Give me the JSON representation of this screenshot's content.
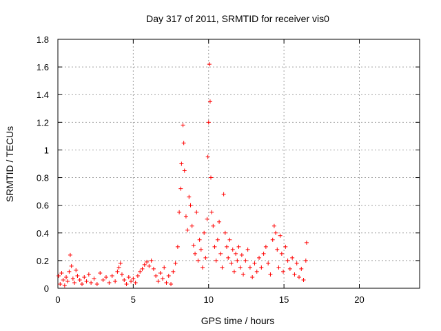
{
  "chart_data": {
    "type": "scatter",
    "title": "Day 317 of 2011, SRMTID for receiver vis0",
    "xlabel": "GPS time / hours",
    "ylabel": "SRMTID / TECUs",
    "xlim": [
      0,
      24
    ],
    "ylim": [
      0,
      1.8
    ],
    "xticks": [
      "0",
      "5",
      "10",
      "15",
      "20"
    ],
    "yticks": [
      "0",
      "0.2",
      "0.4",
      "0.6",
      "0.8",
      "1",
      "1.2",
      "1.4",
      "1.6",
      "1.8"
    ],
    "grid": true,
    "marker": "+",
    "series": [
      {
        "color": "#ff0000",
        "points": [
          [
            0.05,
            0.09
          ],
          [
            0.15,
            0.03
          ],
          [
            0.25,
            0.11
          ],
          [
            0.35,
            0.06
          ],
          [
            0.45,
            0.02
          ],
          [
            0.55,
            0.08
          ],
          [
            0.65,
            0.05
          ],
          [
            0.75,
            0.12
          ],
          [
            0.82,
            0.24
          ],
          [
            0.9,
            0.16
          ],
          [
            1.0,
            0.07
          ],
          [
            1.1,
            0.04
          ],
          [
            1.2,
            0.13
          ],
          [
            1.3,
            0.09
          ],
          [
            1.45,
            0.06
          ],
          [
            1.6,
            0.03
          ],
          [
            1.75,
            0.08
          ],
          [
            1.9,
            0.05
          ],
          [
            2.05,
            0.1
          ],
          [
            2.2,
            0.04
          ],
          [
            2.4,
            0.07
          ],
          [
            2.6,
            0.03
          ],
          [
            2.8,
            0.11
          ],
          [
            3.0,
            0.06
          ],
          [
            3.2,
            0.08
          ],
          [
            3.4,
            0.04
          ],
          [
            3.6,
            0.09
          ],
          [
            3.8,
            0.05
          ],
          [
            3.95,
            0.12
          ],
          [
            4.05,
            0.15
          ],
          [
            4.15,
            0.18
          ],
          [
            4.25,
            0.1
          ],
          [
            4.4,
            0.06
          ],
          [
            4.55,
            0.03
          ],
          [
            4.7,
            0.08
          ],
          [
            4.85,
            0.05
          ],
          [
            5.0,
            0.07
          ],
          [
            5.15,
            0.04
          ],
          [
            5.3,
            0.09
          ],
          [
            5.45,
            0.12
          ],
          [
            5.6,
            0.14
          ],
          [
            5.75,
            0.17
          ],
          [
            5.9,
            0.19
          ],
          [
            6.05,
            0.16
          ],
          [
            6.2,
            0.2
          ],
          [
            6.35,
            0.14
          ],
          [
            6.5,
            0.09
          ],
          [
            6.65,
            0.05
          ],
          [
            6.8,
            0.11
          ],
          [
            6.95,
            0.07
          ],
          [
            7.05,
            0.15
          ],
          [
            7.2,
            0.04
          ],
          [
            7.35,
            0.09
          ],
          [
            7.5,
            0.03
          ],
          [
            7.65,
            0.12
          ],
          [
            7.8,
            0.18
          ],
          [
            7.95,
            0.3
          ],
          [
            8.05,
            0.55
          ],
          [
            8.15,
            0.72
          ],
          [
            8.2,
            0.9
          ],
          [
            8.3,
            1.18
          ],
          [
            8.35,
            1.05
          ],
          [
            8.4,
            0.85
          ],
          [
            8.5,
            0.52
          ],
          [
            8.6,
            0.42
          ],
          [
            8.7,
            0.66
          ],
          [
            8.8,
            0.6
          ],
          [
            8.9,
            0.45
          ],
          [
            9.0,
            0.31
          ],
          [
            9.1,
            0.25
          ],
          [
            9.2,
            0.55
          ],
          [
            9.3,
            0.2
          ],
          [
            9.4,
            0.35
          ],
          [
            9.5,
            0.28
          ],
          [
            9.6,
            0.15
          ],
          [
            9.7,
            0.4
          ],
          [
            9.8,
            0.22
          ],
          [
            9.9,
            0.5
          ],
          [
            9.95,
            0.95
          ],
          [
            10.0,
            1.2
          ],
          [
            10.05,
            1.62
          ],
          [
            10.1,
            1.35
          ],
          [
            10.15,
            0.8
          ],
          [
            10.2,
            0.55
          ],
          [
            10.3,
            0.45
          ],
          [
            10.4,
            0.3
          ],
          [
            10.5,
            0.2
          ],
          [
            10.6,
            0.35
          ],
          [
            10.7,
            0.48
          ],
          [
            10.8,
            0.25
          ],
          [
            10.9,
            0.15
          ],
          [
            11.0,
            0.68
          ],
          [
            11.1,
            0.4
          ],
          [
            11.2,
            0.3
          ],
          [
            11.3,
            0.22
          ],
          [
            11.4,
            0.35
          ],
          [
            11.5,
            0.18
          ],
          [
            11.6,
            0.28
          ],
          [
            11.7,
            0.12
          ],
          [
            11.8,
            0.25
          ],
          [
            11.9,
            0.2
          ],
          [
            12.0,
            0.3
          ],
          [
            12.1,
            0.15
          ],
          [
            12.2,
            0.24
          ],
          [
            12.3,
            0.1
          ],
          [
            12.45,
            0.2
          ],
          [
            12.6,
            0.28
          ],
          [
            12.75,
            0.15
          ],
          [
            12.9,
            0.08
          ],
          [
            13.05,
            0.18
          ],
          [
            13.2,
            0.12
          ],
          [
            13.35,
            0.22
          ],
          [
            13.5,
            0.15
          ],
          [
            13.65,
            0.25
          ],
          [
            13.8,
            0.3
          ],
          [
            13.95,
            0.18
          ],
          [
            14.1,
            0.1
          ],
          [
            14.25,
            0.35
          ],
          [
            14.35,
            0.45
          ],
          [
            14.45,
            0.4
          ],
          [
            14.55,
            0.28
          ],
          [
            14.65,
            0.15
          ],
          [
            14.75,
            0.38
          ],
          [
            14.85,
            0.25
          ],
          [
            14.95,
            0.12
          ],
          [
            15.1,
            0.3
          ],
          [
            15.25,
            0.2
          ],
          [
            15.4,
            0.14
          ],
          [
            15.55,
            0.22
          ],
          [
            15.7,
            0.1
          ],
          [
            15.85,
            0.18
          ],
          [
            16.0,
            0.08
          ],
          [
            16.15,
            0.14
          ],
          [
            16.3,
            0.06
          ],
          [
            16.45,
            0.2
          ],
          [
            16.5,
            0.33
          ]
        ]
      }
    ]
  }
}
